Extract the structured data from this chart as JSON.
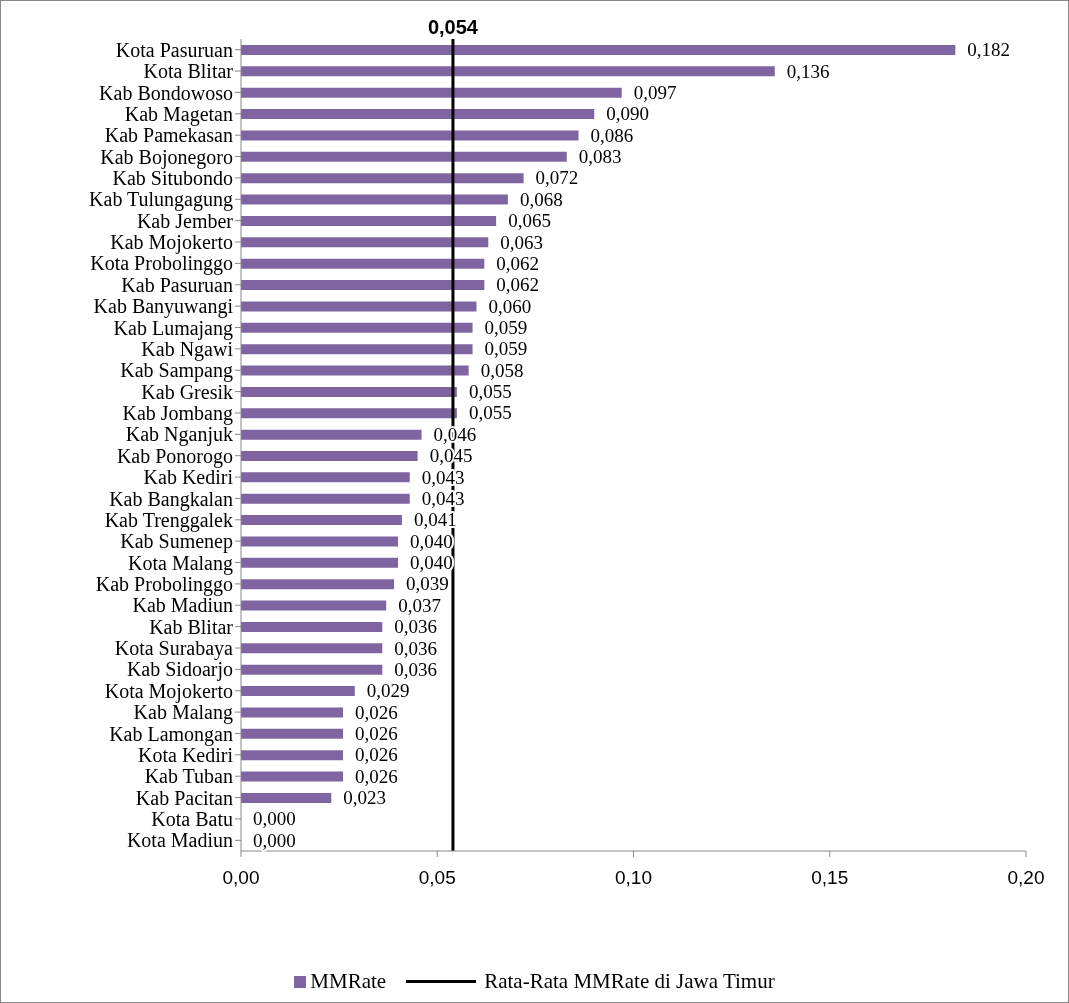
{
  "chart_data": {
    "type": "bar",
    "orientation": "horizontal",
    "categories": [
      "Kota Pasuruan",
      "Kota Blitar",
      "Kab Bondowoso",
      "Kab Magetan",
      "Kab Pamekasan",
      "Kab Bojonegoro",
      "Kab Situbondo",
      "Kab Tulungagung",
      "Kab Jember",
      "Kab Mojokerto",
      "Kota Probolinggo",
      "Kab Pasuruan",
      "Kab Banyuwangi",
      "Kab Lumajang",
      "Kab Ngawi",
      "Kab Sampang",
      "Kab Gresik",
      "Kab Jombang",
      "Kab Nganjuk",
      "Kab Ponorogo",
      "Kab Kediri",
      "Kab Bangkalan",
      "Kab Trenggalek",
      "Kab Sumenep",
      "Kota Malang",
      "Kab Probolinggo",
      "Kab Madiun",
      "Kab Blitar",
      "Kota Surabaya",
      "Kab Sidoarjo",
      "Kota Mojokerto",
      "Kab Malang",
      "Kab Lamongan",
      "Kota Kediri",
      "Kab Tuban",
      "Kab Pacitan",
      "Kota Batu",
      "Kota Madiun"
    ],
    "series": [
      {
        "name": "MMRate",
        "color": "#8064a2",
        "values": [
          0.182,
          0.136,
          0.097,
          0.09,
          0.086,
          0.083,
          0.072,
          0.068,
          0.065,
          0.063,
          0.062,
          0.062,
          0.06,
          0.059,
          0.059,
          0.058,
          0.055,
          0.055,
          0.046,
          0.045,
          0.043,
          0.043,
          0.041,
          0.04,
          0.04,
          0.039,
          0.037,
          0.036,
          0.036,
          0.036,
          0.029,
          0.026,
          0.026,
          0.026,
          0.026,
          0.023,
          0,
          0
        ],
        "value_labels": [
          "0,182",
          "0,136",
          "0,097",
          "0,090",
          "0,086",
          "0,083",
          "0,072",
          "0,068",
          "0,065",
          "0,063",
          "0,062",
          "0,062",
          "0,060",
          "0,059",
          "0,059",
          "0,058",
          "0,055",
          "0,055",
          "0,046",
          "0,045",
          "0,043",
          "0,043",
          "0,041",
          "0,040",
          "0,040",
          "0,039",
          "0,037",
          "0,036",
          "0,036",
          "0,036",
          "0,029",
          "0,026",
          "0,026",
          "0,026",
          "0,026",
          "0,023",
          "0,000",
          "0,000"
        ]
      }
    ],
    "xlim": [
      0,
      0.2
    ],
    "xticks": [
      {
        "value": 0,
        "label": "0,00"
      },
      {
        "value": 0.05,
        "label": "0,05"
      },
      {
        "value": 0.1,
        "label": "0,10"
      },
      {
        "value": 0.15,
        "label": "0,15"
      },
      {
        "value": 0.2,
        "label": "0,20"
      }
    ],
    "ref_lines": [
      {
        "axis": "x",
        "value": 0.054,
        "label": "0,054",
        "color": "#000000"
      }
    ],
    "annotations": [
      "Rata-Rata MMRate di Jawa Timur"
    ],
    "legend": "bottom",
    "grid": false
  }
}
